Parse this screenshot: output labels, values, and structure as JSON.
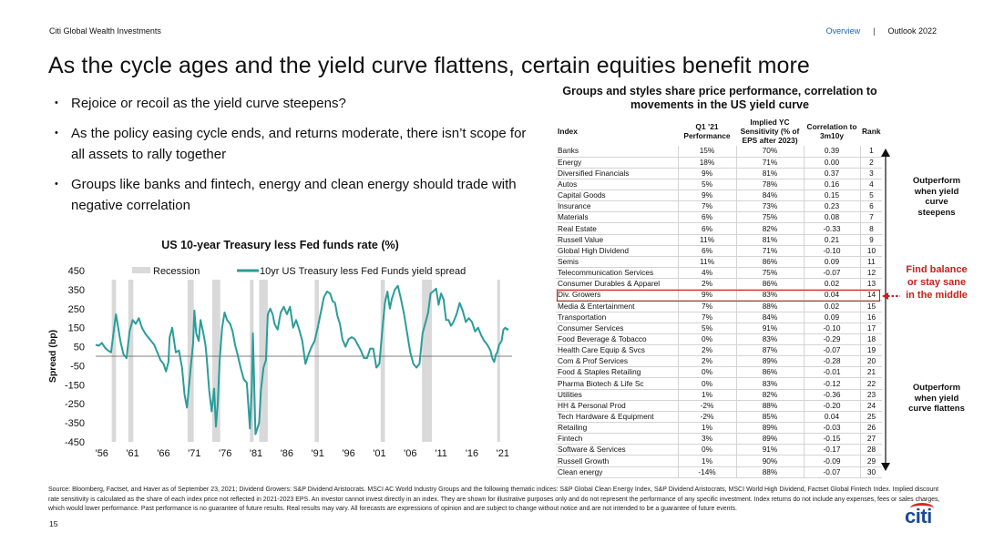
{
  "header": {
    "org": "Citi Global Wealth Investments",
    "nav": {
      "active": "Overview",
      "sep": "|",
      "other": "Outlook 2022"
    }
  },
  "title": "As the cycle ages and the yield curve flattens, certain equities benefit more",
  "bullets": [
    "Rejoice or recoil as the yield curve steepens?",
    "As the policy easing cycle ends, and returns moderate, there isn’t scope for all assets to rally together",
    "Groups like banks and fintech, energy and clean energy should trade with negative correlation"
  ],
  "chart_data": [
    {
      "type": "line",
      "title": "US 10-year Treasury less Fed funds rate (%)",
      "ylabel": "Spread (bp)",
      "xlabel": "",
      "ylim": [
        -450,
        450
      ],
      "yticks": [
        450,
        350,
        250,
        150,
        50,
        -50,
        -150,
        -250,
        -350,
        -450
      ],
      "xlim": [
        1955,
        2022.5
      ],
      "xticks": [
        "'56",
        "'61",
        "'66",
        "'71",
        "'76",
        "'81",
        "'86",
        "'91",
        "'96",
        "'01",
        "'06",
        "'11",
        "'16",
        "'21"
      ],
      "xtick_years": [
        1956,
        1961,
        1966,
        1971,
        1976,
        1981,
        1986,
        1991,
        1996,
        2001,
        2006,
        2011,
        2016,
        2021
      ],
      "legend": {
        "placement": "top",
        "items": [
          {
            "name": "Recession",
            "color": "#d9d9d9"
          },
          {
            "name": "10yr US Treasury less Fed Funds yield spread",
            "color": "#2a9d9a"
          }
        ]
      },
      "recessions": [
        [
          1957.6,
          1958.3
        ],
        [
          1960.3,
          1961.1
        ],
        [
          1969.9,
          1970.9
        ],
        [
          1973.9,
          1975.2
        ],
        [
          1980.0,
          1980.6
        ],
        [
          1981.5,
          1982.9
        ],
        [
          1990.5,
          1991.2
        ],
        [
          2001.2,
          2001.9
        ],
        [
          2007.9,
          2009.5
        ],
        [
          2020.1,
          2020.4
        ]
      ],
      "series": [
        {
          "name": "10yr US Treasury less Fed Funds yield spread",
          "color": "#2a9d9a",
          "points": [
            [
              1955,
              60
            ],
            [
              1955.5,
              55
            ],
            [
              1956,
              70
            ],
            [
              1956.5,
              45
            ],
            [
              1957,
              30
            ],
            [
              1957.5,
              20
            ],
            [
              1958,
              150
            ],
            [
              1958.3,
              220
            ],
            [
              1958.7,
              140
            ],
            [
              1959,
              80
            ],
            [
              1959.5,
              10
            ],
            [
              1960,
              -10
            ],
            [
              1960.5,
              130
            ],
            [
              1961,
              190
            ],
            [
              1961.5,
              170
            ],
            [
              1962,
              200
            ],
            [
              1962.5,
              150
            ],
            [
              1963,
              120
            ],
            [
              1963.5,
              100
            ],
            [
              1964,
              80
            ],
            [
              1964.5,
              60
            ],
            [
              1965,
              20
            ],
            [
              1965.5,
              -20
            ],
            [
              1966,
              -40
            ],
            [
              1966.4,
              -80
            ],
            [
              1966.8,
              -30
            ],
            [
              1967,
              100
            ],
            [
              1967.4,
              150
            ],
            [
              1967.8,
              60
            ],
            [
              1968,
              20
            ],
            [
              1968.5,
              30
            ],
            [
              1969,
              -60
            ],
            [
              1969.4,
              -200
            ],
            [
              1969.8,
              -270
            ],
            [
              1970,
              -200
            ],
            [
              1970.4,
              -60
            ],
            [
              1970.8,
              70
            ],
            [
              1971,
              240
            ],
            [
              1971.3,
              120
            ],
            [
              1971.7,
              80
            ],
            [
              1972,
              190
            ],
            [
              1972.4,
              130
            ],
            [
              1972.8,
              60
            ],
            [
              1973,
              -10
            ],
            [
              1973.4,
              -180
            ],
            [
              1973.8,
              -290
            ],
            [
              1974.2,
              -170
            ],
            [
              1974.5,
              -370
            ],
            [
              1974.8,
              -240
            ],
            [
              1975.1,
              -20
            ],
            [
              1975.5,
              150
            ],
            [
              1975.9,
              230
            ],
            [
              1976.3,
              190
            ],
            [
              1976.8,
              170
            ],
            [
              1977.2,
              130
            ],
            [
              1977.6,
              60
            ],
            [
              1978,
              10
            ],
            [
              1978.5,
              -60
            ],
            [
              1979,
              -120
            ],
            [
              1979.5,
              -140
            ],
            [
              1980,
              -380
            ],
            [
              1980.3,
              -170
            ],
            [
              1980.5,
              120
            ],
            [
              1980.9,
              -410
            ],
            [
              1981.2,
              -380
            ],
            [
              1981.5,
              -350
            ],
            [
              1981.8,
              -180
            ],
            [
              1982.2,
              -60
            ],
            [
              1982.6,
              -20
            ],
            [
              1982.9,
              220
            ],
            [
              1983.3,
              250
            ],
            [
              1983.7,
              220
            ],
            [
              1984,
              170
            ],
            [
              1984.5,
              140
            ],
            [
              1985,
              230
            ],
            [
              1985.5,
              260
            ],
            [
              1986,
              220
            ],
            [
              1986.5,
              260
            ],
            [
              1987,
              150
            ],
            [
              1987.5,
              190
            ],
            [
              1988,
              140
            ],
            [
              1988.5,
              80
            ],
            [
              1989,
              -40
            ],
            [
              1989.5,
              10
            ],
            [
              1990,
              50
            ],
            [
              1990.5,
              80
            ],
            [
              1991,
              150
            ],
            [
              1991.5,
              230
            ],
            [
              1992,
              310
            ],
            [
              1992.5,
              340
            ],
            [
              1993,
              330
            ],
            [
              1993.4,
              290
            ],
            [
              1993.8,
              280
            ],
            [
              1994.2,
              210
            ],
            [
              1994.6,
              170
            ],
            [
              1995,
              90
            ],
            [
              1995.5,
              50
            ],
            [
              1996,
              90
            ],
            [
              1996.5,
              100
            ],
            [
              1997,
              90
            ],
            [
              1997.5,
              60
            ],
            [
              1998,
              30
            ],
            [
              1998.5,
              -10
            ],
            [
              1999,
              -10
            ],
            [
              1999.5,
              40
            ],
            [
              2000,
              40
            ],
            [
              2000.5,
              -60
            ],
            [
              2001,
              -40
            ],
            [
              2001.5,
              150
            ],
            [
              2001.9,
              280
            ],
            [
              2002.3,
              340
            ],
            [
              2002.7,
              250
            ],
            [
              2003,
              300
            ],
            [
              2003.5,
              350
            ],
            [
              2004,
              370
            ],
            [
              2004.5,
              300
            ],
            [
              2005,
              220
            ],
            [
              2005.5,
              120
            ],
            [
              2006,
              20
            ],
            [
              2006.5,
              -40
            ],
            [
              2007,
              -60
            ],
            [
              2007.5,
              -40
            ],
            [
              2008,
              120
            ],
            [
              2008.5,
              180
            ],
            [
              2008.9,
              230
            ],
            [
              2009.3,
              330
            ],
            [
              2009.7,
              340
            ],
            [
              2010.2,
              355
            ],
            [
              2010.6,
              270
            ],
            [
              2011,
              330
            ],
            [
              2011.4,
              300
            ],
            [
              2011.8,
              190
            ],
            [
              2012.2,
              190
            ],
            [
              2012.6,
              160
            ],
            [
              2013,
              180
            ],
            [
              2013.5,
              220
            ],
            [
              2014,
              280
            ],
            [
              2014.5,
              240
            ],
            [
              2015,
              180
            ],
            [
              2015.5,
              200
            ],
            [
              2016,
              180
            ],
            [
              2016.5,
              130
            ],
            [
              2017,
              150
            ],
            [
              2017.5,
              110
            ],
            [
              2018,
              80
            ],
            [
              2018.5,
              60
            ],
            [
              2019,
              30
            ],
            [
              2019.3,
              -10
            ],
            [
              2019.6,
              -30
            ],
            [
              2019.9,
              10
            ],
            [
              2020.1,
              20
            ],
            [
              2020.4,
              60
            ],
            [
              2020.8,
              80
            ],
            [
              2021.1,
              140
            ],
            [
              2021.4,
              150
            ],
            [
              2021.7,
              140
            ],
            [
              2021.9,
              145
            ]
          ]
        }
      ]
    },
    {
      "type": "table",
      "title": "Groups and styles share price performance, correlation to movements in the US yield curve",
      "columns": [
        "Index",
        "Q1 ’21 Performance",
        "Implied YC Sensitivity (% of EPS after 2023)",
        "Correlation to 3m10y",
        "Rank"
      ],
      "rows": [
        [
          "Banks",
          "15%",
          "70%",
          "0.39",
          "1"
        ],
        [
          "Energy",
          "18%",
          "71%",
          "0.00",
          "2"
        ],
        [
          "Diversified Financials",
          "9%",
          "81%",
          "0.37",
          "3"
        ],
        [
          "Autos",
          "5%",
          "78%",
          "0.16",
          "4"
        ],
        [
          "Capital Goods",
          "9%",
          "84%",
          "0.15",
          "5"
        ],
        [
          "Insurance",
          "7%",
          "73%",
          "0.23",
          "6"
        ],
        [
          "Materials",
          "6%",
          "75%",
          "0.08",
          "7"
        ],
        [
          "Real Estate",
          "6%",
          "82%",
          "-0.33",
          "8"
        ],
        [
          "Russell Value",
          "11%",
          "81%",
          "0.21",
          "9"
        ],
        [
          "Global High Dividend",
          "6%",
          "71%",
          "-0.10",
          "10"
        ],
        [
          "Semis",
          "11%",
          "86%",
          "0.09",
          "11"
        ],
        [
          "Telecommunication Services",
          "4%",
          "75%",
          "-0.07",
          "12"
        ],
        [
          "Consumer Durables & Apparel",
          "2%",
          "86%",
          "0.02",
          "13"
        ],
        [
          "Div. Growers",
          "9%",
          "83%",
          "0.04",
          "14"
        ],
        [
          "Media & Entertainment",
          "7%",
          "88%",
          "0.02",
          "15"
        ],
        [
          "Transportation",
          "7%",
          "84%",
          "0.09",
          "16"
        ],
        [
          "Consumer Services",
          "5%",
          "91%",
          "-0.10",
          "17"
        ],
        [
          "Food Beverage & Tobacco",
          "0%",
          "83%",
          "-0.29",
          "18"
        ],
        [
          "Health Care Equip & Svcs",
          "2%",
          "87%",
          "-0.07",
          "19"
        ],
        [
          "Com & Prof Services",
          "2%",
          "89%",
          "-0.28",
          "20"
        ],
        [
          "Food & Staples Retailing",
          "0%",
          "86%",
          "-0.01",
          "21"
        ],
        [
          "Pharma Biotech & Life Sc",
          "0%",
          "83%",
          "-0.12",
          "22"
        ],
        [
          "Utilities",
          "1%",
          "82%",
          "-0.36",
          "23"
        ],
        [
          "HH & Personal Prod",
          "-2%",
          "88%",
          "-0.20",
          "24"
        ],
        [
          "Tech Hardware & Equipment",
          "-2%",
          "85%",
          "0.04",
          "25"
        ],
        [
          "Retailing",
          "1%",
          "89%",
          "-0.03",
          "26"
        ],
        [
          "Fintech",
          "3%",
          "89%",
          "-0.15",
          "27"
        ],
        [
          "Software & Services",
          "0%",
          "91%",
          "-0.17",
          "28"
        ],
        [
          "Russell Growth",
          "1%",
          "90%",
          "-0.09",
          "29"
        ],
        [
          "Clean energy",
          "-14%",
          "88%",
          "-0.07",
          "30"
        ]
      ],
      "highlight_row": "Div. Growers"
    }
  ],
  "side_labels": {
    "top": "Outperform when yield curve steepens",
    "middle": "Find balance or stay sane in the middle",
    "bottom": "Outperform when yield curve flattens"
  },
  "footer": "Source: Bloomberg, Factset, and Haver as of September 23, 2021; Dividend Growers: S&P Dividend Aristocrats. MSCI AC World Industry Groups and the following thematic indices: S&P Global Clean Energy Index, S&P Dividend Aristocrats, MSCI World High Dividend, Factset Global Fintech Index. Implied discount rate sensitivity is calculated as the share of each index price not reflected in 2021-2023 EPS. An investor cannot invest directly in an index. They are shown for illustrative purposes only and do not represent the performance of any specific investment. Index returns do not include any expenses, fees or sales charges, which would lower performance. Past performance is no guarantee of future results. Real results may vary. All forecasts are expressions of opinion and are subject to change without notice and are not intended to be a guarantee of future events.",
  "page_number": "15",
  "logo": "citi",
  "colors": {
    "line": "#2a9d9a",
    "recession": "#d9d9d9",
    "highlight": "#c8201c",
    "nav_active": "#1a63b8",
    "logo_blue": "#1b4b92",
    "logo_red": "#d42a24"
  }
}
